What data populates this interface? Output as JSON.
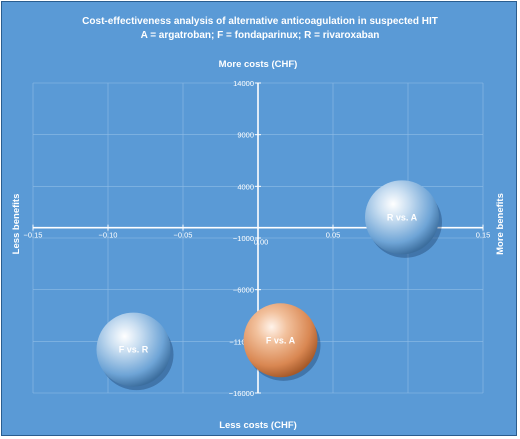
{
  "chart_data": {
    "type": "bubble",
    "title": "Cost-effectiveness analysis of alternative anticoagulation in suspected HIT",
    "subtitle": "A = argatroban; F = fondaparinux; R = rivaroxaban",
    "top_label": "More costs (CHF)",
    "bottom_label": "Less costs (CHF)",
    "left_label": "Less benefits",
    "right_label": "More benefits",
    "xlim": [
      -0.15,
      0.15
    ],
    "ylim": [
      -16000,
      14000
    ],
    "x_ticks": [
      {
        "value": -0.15,
        "label": "−0.15"
      },
      {
        "value": -0.1,
        "label": "−0.10"
      },
      {
        "value": -0.05,
        "label": "−0.05"
      },
      {
        "value": 0.05,
        "label": "0.05"
      },
      {
        "value": 0.1,
        "label": "0.10"
      },
      {
        "value": 0.15,
        "label": "0.15"
      }
    ],
    "origin_label": "0.00",
    "y_ticks": [
      {
        "value": 14000,
        "label": "14000"
      },
      {
        "value": 9000,
        "label": "9000"
      },
      {
        "value": 4000,
        "label": "4000"
      },
      {
        "value": -1000,
        "label": "−1000"
      },
      {
        "value": -6000,
        "label": "−6000"
      },
      {
        "value": -11000,
        "label": "−11000"
      },
      {
        "value": -16000,
        "label": "−16000"
      }
    ],
    "grid": true,
    "points": [
      {
        "label": "R vs. A",
        "x": 0.096,
        "y": 1000,
        "color": "blue"
      },
      {
        "label": "F vs. A",
        "x": 0.015,
        "y": -10900,
        "color": "orange"
      },
      {
        "label": "F vs. R",
        "x": -0.083,
        "y": -11800,
        "color": "blue"
      }
    ]
  },
  "colors": {
    "background": "#5a9ad6",
    "border": "#2a5d8f",
    "grid": "#8fbde6",
    "axis": "#ffffff",
    "bubble_blue": "#7fb0de",
    "bubble_orange": "#e0925e"
  }
}
